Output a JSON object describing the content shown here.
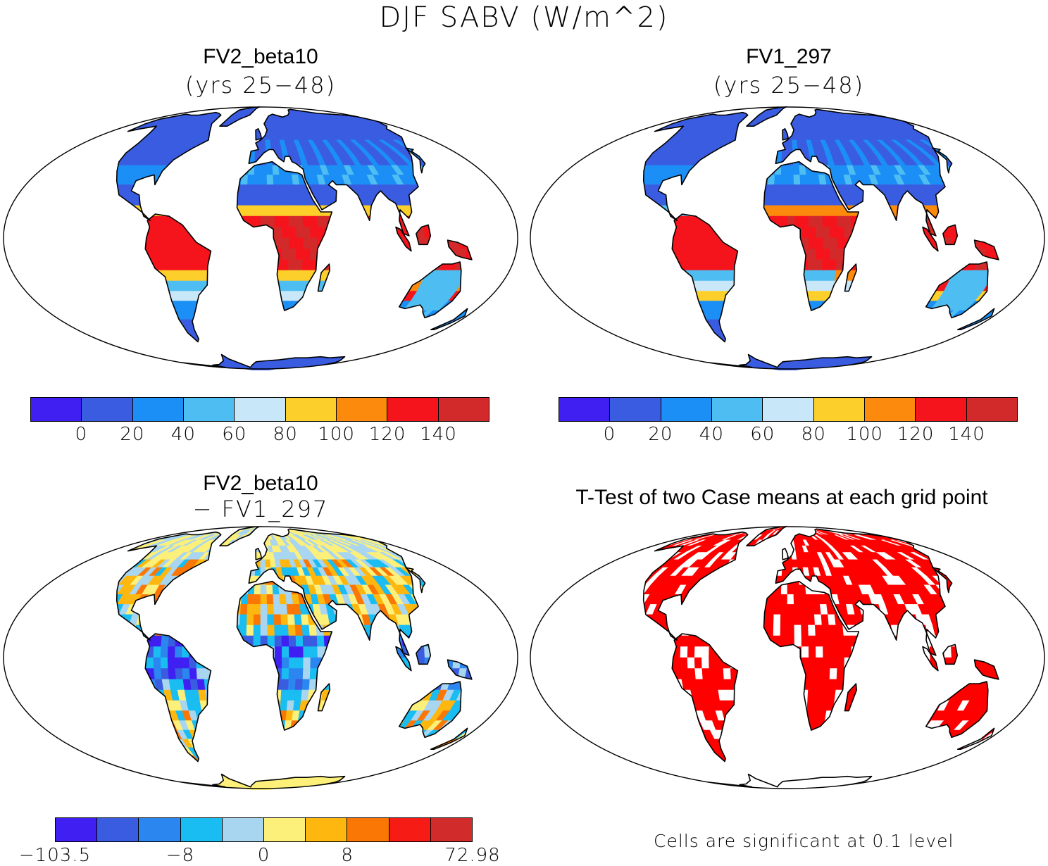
{
  "title": "DJF SABV (W/m^2)",
  "panels": [
    {
      "id": "p1",
      "title": "FV2_beta10",
      "subtitle": "(yrs 25−48)"
    },
    {
      "id": "p2",
      "title": "FV1_297",
      "subtitle": "(yrs 25−48)"
    },
    {
      "id": "p3",
      "title": "FV2_beta10",
      "subtitle": "− FV1_297"
    },
    {
      "id": "p4",
      "title": "T-Test of two Case means at each grid point",
      "subtitle": ""
    }
  ],
  "colorbar_main": {
    "colors": [
      "#3f1ff2",
      "#3a5ce0",
      "#1b8ff5",
      "#4ebef2",
      "#c8e7f8",
      "#fdcf2a",
      "#fc8a0c",
      "#f5141c",
      "#d22a2a"
    ],
    "labels": [
      "0",
      "20",
      "40",
      "60",
      "80",
      "100",
      "120",
      "140"
    ]
  },
  "colorbar_diff": {
    "colors": [
      "#3f1ff2",
      "#3a5ce0",
      "#2b86f0",
      "#19bdf2",
      "#a8d5f0",
      "#fdf07a",
      "#fdb70f",
      "#fb7705",
      "#f71b16",
      "#d12b2b"
    ],
    "labels": [
      "−103.5",
      "−8",
      "0",
      "8",
      "72.98"
    ]
  },
  "significance_note": "Cells are significant at 0.1 level",
  "map_colors": {
    "ocean": "#ffffff",
    "antarctica_abs": "#3a5ce0",
    "antarctica_diff": "#fdf07a",
    "signif": "#ff0000"
  }
}
